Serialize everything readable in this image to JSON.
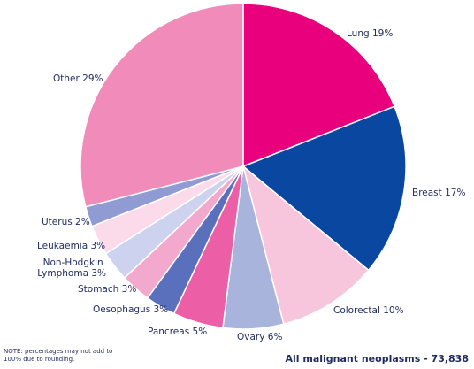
{
  "chart_data": {
    "type": "pie",
    "slices": [
      {
        "label": "Lung 19%",
        "value": 19,
        "color": "#e8007d"
      },
      {
        "label": "Breast 17%",
        "value": 17,
        "color": "#0a47a0"
      },
      {
        "label": "Colorectal 10%",
        "value": 10,
        "color": "#f7c6dc"
      },
      {
        "label": "Ovary 6%",
        "value": 6,
        "color": "#a9b4dd"
      },
      {
        "label": "Pancreas 5%",
        "value": 5,
        "color": "#ec5fa6"
      },
      {
        "label": "Oesophagus 3%",
        "value": 3,
        "color": "#5b70bd"
      },
      {
        "label": "Stomach 3%",
        "value": 3,
        "color": "#f3a9cd"
      },
      {
        "label": "Non-Hodgkin Lymphoma 3%",
        "value": 3,
        "color": "#cdd3ee"
      },
      {
        "label": "Leukaemia 3%",
        "value": 3,
        "color": "#fbdbe9"
      },
      {
        "label": "Uterus 2%",
        "value": 2,
        "color": "#8f9bd2"
      },
      {
        "label": "Other 29%",
        "value": 29,
        "color": "#f18cba"
      }
    ],
    "note": "NOTE: percentages may not add to 100% due to rounding.",
    "total_label": "All malignant neoplasms - 73,838"
  }
}
